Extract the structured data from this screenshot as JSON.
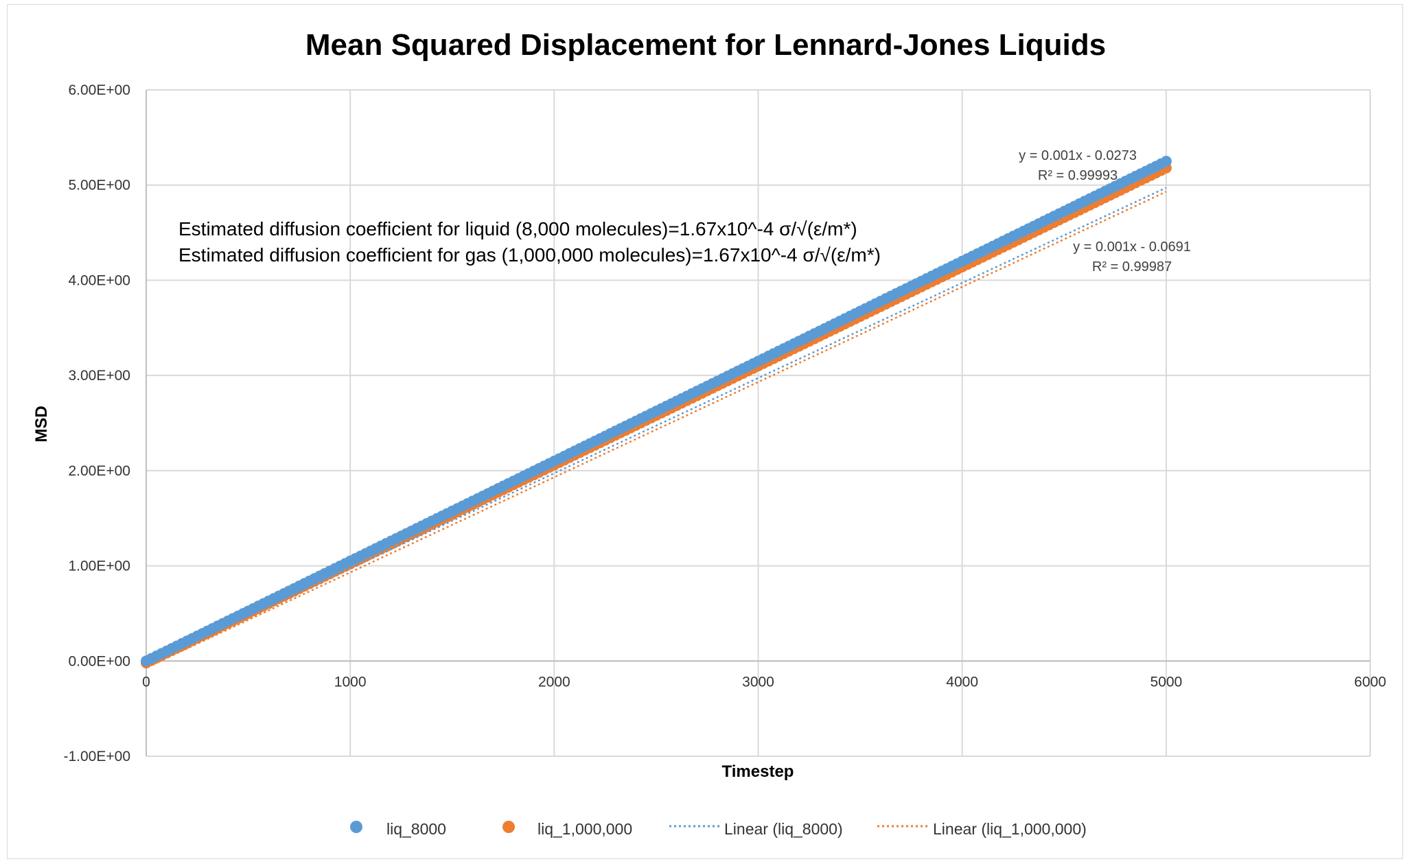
{
  "chart_data": {
    "type": "scatter",
    "title": "Mean Squared Displacement for Lennard-Jones Liquids",
    "xlabel": "Timestep",
    "ylabel": "MSD",
    "xlim": [
      0,
      6000
    ],
    "ylim": [
      -1,
      6
    ],
    "x_ticks": [
      0,
      1000,
      2000,
      3000,
      4000,
      5000,
      6000
    ],
    "x_tick_labels": [
      "0",
      "1000",
      "2000",
      "3000",
      "4000",
      "5000",
      "6000"
    ],
    "y_ticks": [
      6,
      5,
      4,
      3,
      2,
      1,
      0,
      -1
    ],
    "y_tick_labels": [
      "6.00E+00",
      "5.00E+00",
      "4.00E+00",
      "3.00E+00",
      "2.00E+00",
      "1.00E+00",
      "0.00E+00",
      "-1.00E+00"
    ],
    "grid": true,
    "series": [
      {
        "name": "liq_8000",
        "color": "#5b9bd5",
        "x_start": 0,
        "x_end": 5000,
        "x_step": 25,
        "slope": 0.00105,
        "intercept": 0.0,
        "trendline": {
          "name": "Linear (liq_8000)",
          "slope": 0.001,
          "intercept": -0.0273,
          "equation": "y = 0.001x - 0.0273",
          "r2": "R² = 0.99993"
        }
      },
      {
        "name": "liq_1,000,000",
        "color": "#ed7d31",
        "x_start": 0,
        "x_end": 5000,
        "x_step": 25,
        "slope": 0.00104,
        "intercept": -0.02,
        "trendline": {
          "name": "Linear (liq_1,000,000)",
          "slope": 0.001,
          "intercept": -0.0691,
          "equation": "y = 0.001x - 0.0691",
          "r2": "R² = 0.99987"
        }
      }
    ],
    "annotations": [
      "Estimated diffusion coefficient for liquid (8,000 molecules)=1.67x10^-4 σ/√(ε/m*)",
      "Estimated diffusion coefficient for gas (1,000,000 molecules)=1.67x10^-4 σ/√(ε/m*)"
    ],
    "legend": {
      "position": "bottom",
      "items": [
        "liq_8000",
        "liq_1,000,000",
        "Linear (liq_8000)",
        "Linear (liq_1,000,000)"
      ]
    }
  }
}
